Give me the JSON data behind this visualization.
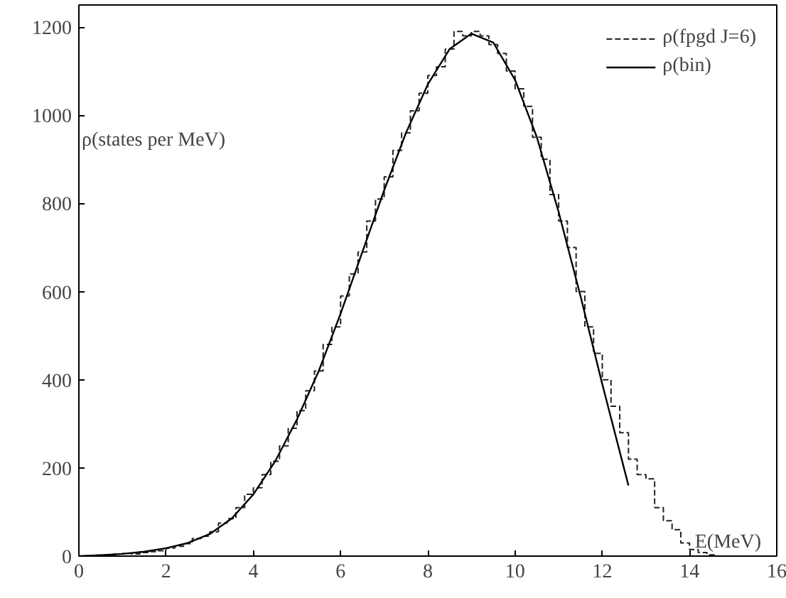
{
  "chart_data": {
    "type": "line",
    "xlabel": "E(MeV)",
    "ylabel": "ρ(states per MeV)",
    "xlim": [
      0,
      16
    ],
    "ylim": [
      0,
      1250
    ],
    "xticks": [
      0,
      2,
      4,
      6,
      8,
      10,
      12,
      14,
      16
    ],
    "yticks": [
      0,
      200,
      400,
      600,
      800,
      1000,
      1200
    ],
    "grid": false,
    "legend": "top right",
    "series": [
      {
        "name": "ρ(fpgd J=6)",
        "type": "histogram",
        "color": "#222222",
        "line_style": "dashed",
        "bins": [
          0,
          0.2,
          0.4,
          0.6,
          0.8,
          1.0,
          1.2,
          1.4,
          1.6,
          1.8,
          2.0,
          2.2,
          2.4,
          2.6,
          2.8,
          3.0,
          3.2,
          3.4,
          3.6,
          3.8,
          4.0,
          4.2,
          4.4,
          4.6,
          4.8,
          5.0,
          5.2,
          5.4,
          5.6,
          5.8,
          6.0,
          6.2,
          6.4,
          6.6,
          6.8,
          7.0,
          7.2,
          7.4,
          7.6,
          7.8,
          8.0,
          8.2,
          8.4,
          8.6,
          8.8,
          9.0,
          9.2,
          9.4,
          9.6,
          9.8,
          10.0,
          10.2,
          10.4,
          10.6,
          10.8,
          11.0,
          11.2,
          11.4,
          11.6,
          11.8,
          12.0,
          12.2,
          12.4,
          12.6,
          12.8,
          13.0,
          13.2,
          13.4,
          13.6,
          13.8,
          14.0,
          14.2,
          14.4,
          14.6
        ],
        "values": [
          0,
          0,
          2,
          3,
          5,
          6,
          5,
          8,
          10,
          12,
          18,
          22,
          28,
          40,
          45,
          55,
          75,
          85,
          110,
          140,
          155,
          185,
          215,
          250,
          290,
          330,
          375,
          420,
          480,
          520,
          590,
          640,
          690,
          760,
          810,
          860,
          920,
          960,
          1010,
          1050,
          1090,
          1110,
          1150,
          1190,
          1180,
          1190,
          1180,
          1160,
          1140,
          1100,
          1060,
          1020,
          950,
          900,
          820,
          760,
          700,
          600,
          520,
          460,
          400,
          340,
          280,
          220,
          185,
          175,
          110,
          80,
          60,
          30,
          15,
          8,
          3
        ]
      },
      {
        "name": "ρ(bin)",
        "color": "#000000",
        "line_style": "solid",
        "x": [
          0,
          0.5,
          1,
          1.5,
          2,
          2.5,
          3,
          3.5,
          4,
          4.5,
          5,
          5.5,
          6,
          6.5,
          7,
          7.5,
          8,
          8.5,
          9,
          9.5,
          10,
          10.5,
          11,
          11.5,
          12,
          12.6
        ],
        "values": [
          0,
          2,
          5,
          10,
          18,
          30,
          50,
          85,
          140,
          215,
          310,
          420,
          550,
          690,
          830,
          960,
          1070,
          1150,
          1185,
          1165,
          1080,
          950,
          780,
          590,
          390,
          160
        ]
      }
    ]
  }
}
